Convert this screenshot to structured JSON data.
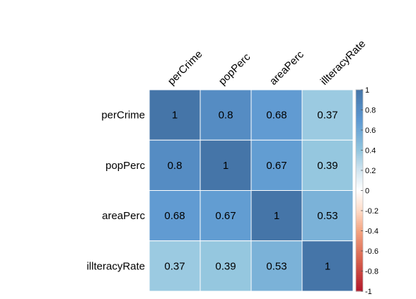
{
  "chart_data": {
    "type": "heatmap",
    "title": "",
    "rows": [
      "perCrime",
      "popPerc",
      "areaPerc",
      "illteracyRate"
    ],
    "columns": [
      "perCrime",
      "popPerc",
      "areaPerc",
      "illteracyRate"
    ],
    "values": [
      [
        1,
        0.8,
        0.68,
        0.37
      ],
      [
        0.8,
        1,
        0.67,
        0.39
      ],
      [
        0.68,
        0.67,
        1,
        0.53
      ],
      [
        0.37,
        0.39,
        0.53,
        1
      ]
    ],
    "value_labels": [
      [
        "1",
        "0.8",
        "0.68",
        "0.37"
      ],
      [
        "0.8",
        "1",
        "0.67",
        "0.39"
      ],
      [
        "0.68",
        "0.67",
        "1",
        "0.53"
      ],
      [
        "0.37",
        "0.39",
        "0.53",
        "1"
      ]
    ],
    "colorbar": {
      "range": [
        -1,
        1
      ],
      "ticks": [
        "1",
        "0.8",
        "0.6",
        "0.4",
        "0.2",
        "0",
        "-0.2",
        "-0.4",
        "-0.6",
        "-0.8",
        "-1"
      ],
      "tick_values": [
        1,
        0.8,
        0.6,
        0.4,
        0.2,
        0,
        -0.2,
        -0.4,
        -0.6,
        -0.8,
        -1
      ],
      "colors": {
        "negative": "#b2182b",
        "zero": "#ffffff",
        "positive": "#2166ac"
      }
    }
  }
}
